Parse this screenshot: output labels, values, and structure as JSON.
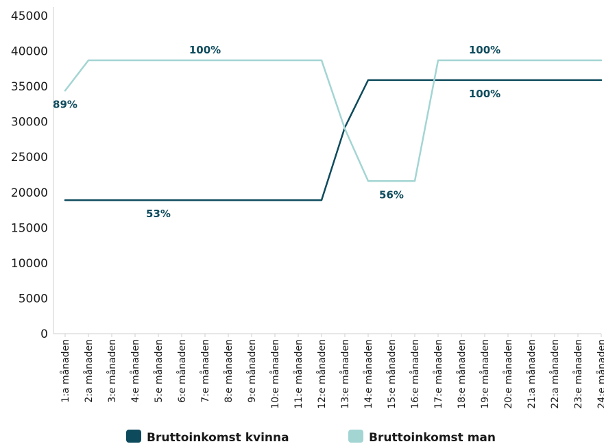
{
  "chart_data": {
    "type": "line",
    "categories": [
      "1:a månaden",
      "2:a månaden",
      "3:e månaden",
      "4:e månaden",
      "5:e månaden",
      "6:e månaden",
      "7:e månaden",
      "8:e månaden",
      "9:e månaden",
      "10:e månaden",
      "11:e månaden",
      "12:e månaden",
      "13:e månaden",
      "14:e månaden",
      "15:e månaden",
      "16:e månaden",
      "17:e månaden",
      "18:e månaden",
      "19:e månaden",
      "20:e månaden",
      "21:a månaden",
      "22:a månaden",
      "23:e månaden",
      "24:e månaden"
    ],
    "series": [
      {
        "name": "Bruttoinkomst kvinna",
        "color": "#0d4a5c",
        "values": [
          18900,
          18900,
          18900,
          18900,
          18900,
          18900,
          18900,
          18900,
          18900,
          18900,
          18900,
          18900,
          29200,
          35900,
          35900,
          35900,
          35900,
          35900,
          35900,
          35900,
          35900,
          35900,
          35900,
          35900
        ]
      },
      {
        "name": "Bruttoinkomst man",
        "color": "#a3d5d3",
        "values": [
          34400,
          38700,
          38700,
          38700,
          38700,
          38700,
          38700,
          38700,
          38700,
          38700,
          38700,
          38700,
          29000,
          21600,
          21600,
          21600,
          38700,
          38700,
          38700,
          38700,
          38700,
          38700,
          38700,
          38700
        ]
      }
    ],
    "yticks": [
      "0",
      "5000",
      "10000",
      "15000",
      "20000",
      "25000",
      "30000",
      "35000",
      "40000",
      "45000"
    ],
    "ylim": [
      0,
      45000
    ],
    "annotations": [
      {
        "text": "89%",
        "series": 1,
        "index": 0,
        "position": "below"
      },
      {
        "text": "100%",
        "series": 1,
        "index": 6,
        "position": "above"
      },
      {
        "text": "53%",
        "series": 0,
        "index": 4,
        "position": "below"
      },
      {
        "text": "56%",
        "series": 1,
        "index": 14,
        "position": "below"
      },
      {
        "text": "100%",
        "series": 1,
        "index": 18,
        "position": "above"
      },
      {
        "text": "100%",
        "series": 0,
        "index": 18,
        "position": "below"
      }
    ],
    "legend": "bottom",
    "grid": false
  }
}
